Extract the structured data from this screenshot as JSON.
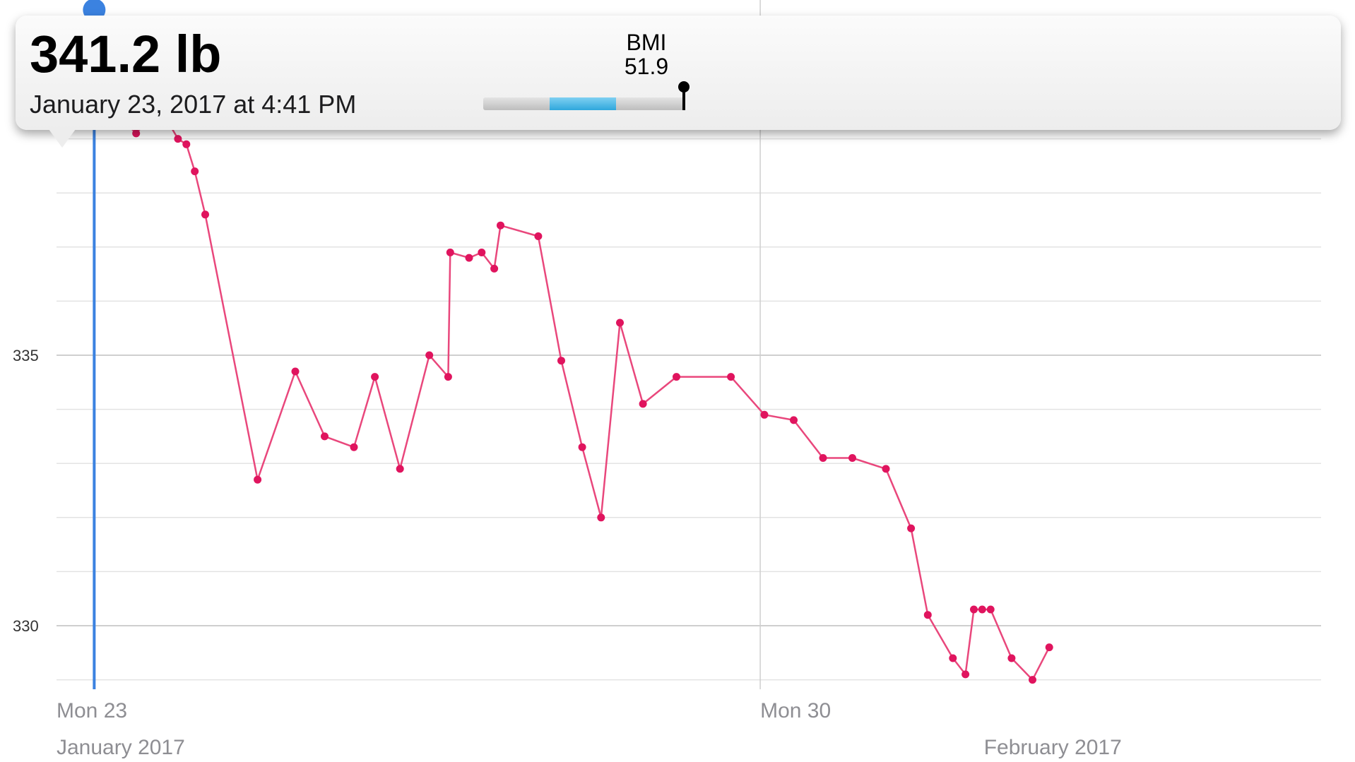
{
  "tooltip": {
    "value": "341.2 lb",
    "date": "January 23, 2017 at 4:41 PM",
    "bmi_label": "BMI",
    "bmi_value": "51.9",
    "bmi_level": 0.99
  },
  "colors": {
    "line": "#e9477c",
    "point": "#e0145e",
    "cursor": "#3b82e0",
    "grid": "#e3e3e3",
    "major_grid": "#cfcfcf",
    "bmi_fill": "#39aee0"
  },
  "chart_data": {
    "type": "line",
    "title": "",
    "xlabel": "",
    "ylabel": "",
    "ylim": [
      328.8,
      341.6
    ],
    "yticks": [
      330,
      335
    ],
    "xlim": [
      "2017-01-23",
      "2017-02-01T21:00"
    ],
    "xtick_labels": [
      {
        "date": "2017-01-23",
        "label": "Mon 23",
        "sublabel": "January 2017"
      },
      {
        "date": "2017-01-30",
        "label": "Mon 30",
        "sublabel": ""
      },
      {
        "date": "2017-02-01",
        "label": "",
        "sublabel": "February 2017"
      }
    ],
    "grid": true,
    "series": [
      {
        "x": [
          "2017-01-23T09:00",
          "2017-01-23T14:00",
          "2017-01-23T19:00",
          "2017-01-24T00:30",
          "2017-01-24T05:00",
          "2017-01-24T07:00",
          "2017-01-24T09:00",
          "2017-01-24T11:30",
          "2017-01-25T00:00",
          "2017-01-25T09:00",
          "2017-01-25T16:00",
          "2017-01-25T23:00",
          "2017-01-26T04:00",
          "2017-01-26T10:00",
          "2017-01-26T17:00",
          "2017-01-26T21:30",
          "2017-01-26T22:00",
          "2017-01-27T02:30",
          "2017-01-27T05:30",
          "2017-01-27T08:30",
          "2017-01-27T10:00",
          "2017-01-27T19:00",
          "2017-01-28T00:30",
          "2017-01-28T05:30",
          "2017-01-28T10:00",
          "2017-01-28T14:30",
          "2017-01-28T20:00",
          "2017-01-29T04:00",
          "2017-01-29T17:00",
          "2017-01-30T01:00",
          "2017-01-30T08:00",
          "2017-01-30T15:00",
          "2017-01-30T22:00",
          "2017-01-31T06:00",
          "2017-01-31T12:00",
          "2017-01-31T16:00",
          "2017-01-31T22:00",
          "2017-02-01T01:00",
          "2017-02-01T03:00",
          "2017-02-01T05:00",
          "2017-02-01T07:00",
          "2017-02-01T12:00",
          "2017-02-01T17:00",
          "2017-02-01T21:00"
        ],
        "y": [
          341.2,
          339.5,
          339.1,
          339.6,
          339.0,
          338.9,
          338.4,
          337.6,
          332.7,
          334.7,
          333.5,
          333.3,
          334.6,
          332.9,
          335.0,
          334.6,
          336.9,
          336.8,
          336.9,
          336.6,
          337.4,
          337.2,
          334.9,
          333.3,
          332.0,
          335.6,
          334.1,
          334.6,
          334.6,
          333.9,
          333.8,
          333.1,
          333.1,
          332.9,
          331.8,
          330.2,
          329.4,
          329.1,
          330.3,
          330.3,
          330.3,
          329.4,
          329.0,
          329.6
        ]
      }
    ]
  }
}
